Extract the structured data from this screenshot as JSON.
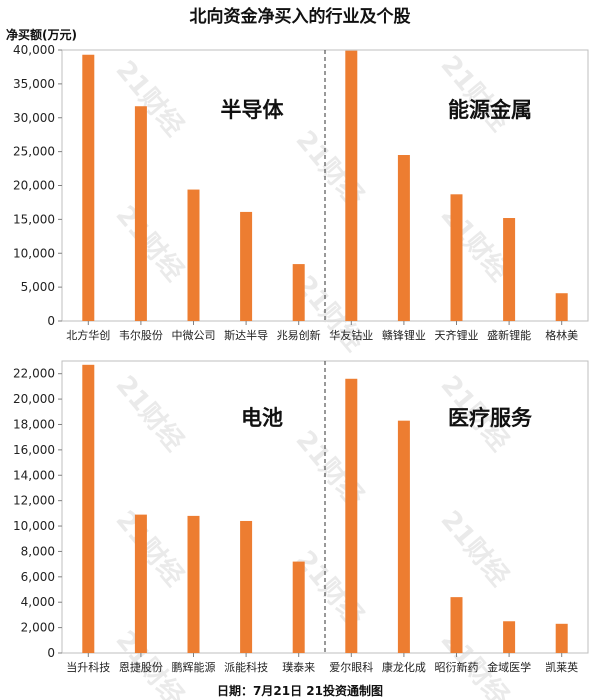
{
  "header": {
    "title": "北向资金净买入的行业及个股",
    "unit_label": "净买额(万元)"
  },
  "footer": {
    "text": "日期：7月21日 21投资通制图"
  },
  "watermark": {
    "text": "21财经"
  },
  "colors": {
    "bar": "#ED7D31",
    "axis": "#7f7f7f",
    "divider": "#333333"
  },
  "chart_data": [
    {
      "type": "bar",
      "title": "",
      "ylabel": "净买额(万元)",
      "ylim": [
        0,
        40000
      ],
      "yticks": [
        0,
        5000,
        10000,
        15000,
        20000,
        25000,
        30000,
        35000,
        40000
      ],
      "groups": [
        {
          "label": "半导体",
          "categories": [
            "北方华创",
            "韦尔股份",
            "中微公司",
            "斯达半导",
            "兆易创新"
          ],
          "values": [
            39300,
            31700,
            19400,
            16100,
            8400
          ]
        },
        {
          "label": "能源金属",
          "categories": [
            "华友钴业",
            "赣锋锂业",
            "天齐锂业",
            "盛新锂能",
            "格林美"
          ],
          "values": [
            39900,
            24500,
            18700,
            15200,
            4100
          ]
        }
      ]
    },
    {
      "type": "bar",
      "title": "",
      "ylabel": "净买额(万元)",
      "ylim": [
        0,
        23000
      ],
      "yticks": [
        0,
        2000,
        4000,
        6000,
        8000,
        10000,
        12000,
        14000,
        16000,
        18000,
        20000,
        22000
      ],
      "groups": [
        {
          "label": "电池",
          "categories": [
            "当升科技",
            "恩捷股份",
            "鹏辉能源",
            "派能科技",
            "璞泰来"
          ],
          "values": [
            22700,
            10900,
            10800,
            10400,
            7200
          ]
        },
        {
          "label": "医疗服务",
          "categories": [
            "爱尔眼科",
            "康龙化成",
            "昭衍新药",
            "金域医学",
            "凯莱英"
          ],
          "values": [
            21600,
            18300,
            4400,
            2500,
            2300
          ]
        }
      ]
    }
  ]
}
